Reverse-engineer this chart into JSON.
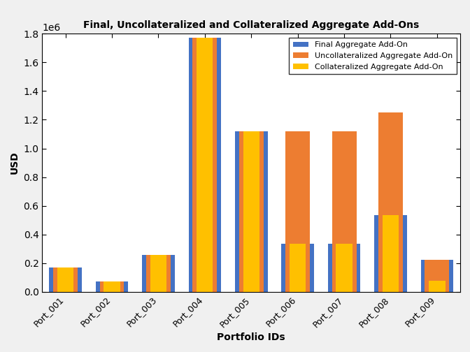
{
  "title": "Final, Uncollateralized and Collateralized Aggregate Add-Ons",
  "xlabel": "Portfolio IDs",
  "ylabel": "USD",
  "categories": [
    "Port_001",
    "Port_002",
    "Port_003",
    "Port_004",
    "Port_005",
    "Port_006",
    "Port_007",
    "Port_008",
    "Port_009"
  ],
  "final": [
    170000,
    70000,
    255000,
    1775000,
    1120000,
    335000,
    335000,
    535000,
    225000
  ],
  "uncollateralized": [
    170000,
    70000,
    255000,
    1775000,
    1120000,
    1120000,
    1120000,
    1250000,
    225000
  ],
  "collateralized": [
    170000,
    70000,
    255000,
    1775000,
    1120000,
    335000,
    335000,
    535000,
    75000
  ],
  "color_final": "#4472C4",
  "color_uncoll": "#ED7D31",
  "color_coll": "#FFC000",
  "legend_labels": [
    "Final Aggregate Add-On",
    "Uncollateralized Aggregate Add-On",
    "Collateralized Aggregate Add-On"
  ],
  "ylim": [
    0,
    1800000
  ],
  "yticks": [
    0,
    200000,
    400000,
    600000,
    800000,
    1000000,
    1200000,
    1400000,
    1600000,
    1800000
  ],
  "bar_width": 0.7,
  "background_color": "#ffffff",
  "outer_bg": "#f0f0f0"
}
